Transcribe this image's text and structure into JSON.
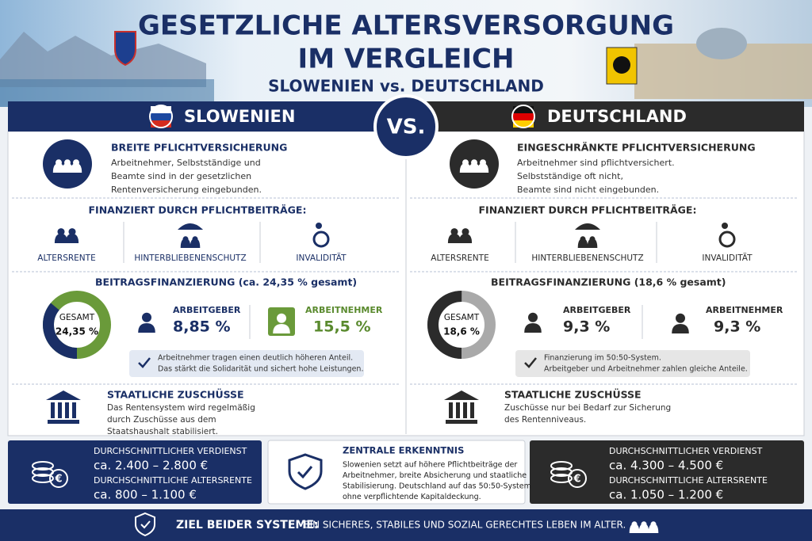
{
  "header": {
    "title_line1": "GESETZLICHE ALTERSVERSORGUNG",
    "title_line2": "IM VERGLEICH",
    "subtitle": "SLOWENIEN vs. DEUTSCHLAND"
  },
  "vs": "VS.",
  "columns": [
    {
      "country": "SLOWENIEN",
      "pflicht": {
        "title": "BREITE PFLICHTVERSICHERUNG",
        "lines": [
          "Arbeitnehmer, Selbstständige und",
          "Beamte sind in der gesetzlichen",
          "Rentenversicherung eingebunden."
        ]
      },
      "finanziert": {
        "title": "FINANZIERT DURCH PFLICHTBEITRÄGE:",
        "items": [
          "ALTERSRENTE",
          "HINTERBLIEBENENSCHUTZ",
          "INVALIDITÄT"
        ]
      },
      "beitrag": {
        "title": "BEITRAGSFINANZIERUNG (ca. 24,35 % gesamt)",
        "gesamt_label": "GESAMT",
        "gesamt_value": "24,35 %",
        "arbeitgeber_label": "ARBEITGEBER",
        "arbeitgeber_value": "8,85 %",
        "arbeitnehmer_label": "ARBEITNEHMER",
        "arbeitnehmer_value": "15,5 %",
        "note": [
          "Arbeitnehmer tragen einen deutlich höheren Anteil.",
          "Das stärkt die Solidarität und sichert hohe Leistungen."
        ]
      },
      "zuschuss": {
        "title": "STAATLICHE ZUSCHÜSSE",
        "lines": [
          "Das Rentensystem wird regelmäßig",
          "durch Zuschüsse aus dem",
          "Staatshaushalt stabilisiert."
        ]
      },
      "summary": {
        "verdienst_label": "DURCHSCHNITTLICHER VERDIENST",
        "verdienst_value": "ca. 2.400 – 2.800 €",
        "rente_label": "DURCHSCHNITTLICHE ALTERSRENTE",
        "rente_value": "ca. 800 – 1.100 €"
      }
    },
    {
      "country": "DEUTSCHLAND",
      "pflicht": {
        "title": "EINGESCHRÄNKTE PFLICHTVERSICHERUNG",
        "lines": [
          "Arbeitnehmer sind pflichtversichert.",
          "Selbstständige oft nicht,",
          "Beamte sind nicht eingebunden."
        ]
      },
      "finanziert": {
        "title": "FINANZIERT DURCH PFLICHTBEITRÄGE:",
        "items": [
          "ALTERSRENTE",
          "HINTERBLIEBENENSCHUTZ",
          "INVALIDITÄT"
        ]
      },
      "beitrag": {
        "title": "BEITRAGSFINANZIERUNG (18,6 % gesamt)",
        "gesamt_label": "GESAMT",
        "gesamt_value": "18,6 %",
        "arbeitgeber_label": "ARBEITGEBER",
        "arbeitgeber_value": "9,3 %",
        "arbeitnehmer_label": "ARBEITNEHMER",
        "arbeitnehmer_value": "9,3 %",
        "note": [
          "Finanzierung im 50:50-System.",
          "Arbeitgeber und Arbeitnehmer zahlen gleiche Anteile."
        ]
      },
      "zuschuss": {
        "title": "STAATLICHE ZUSCHÜSSE",
        "lines": [
          "Zuschüsse nur bei Bedarf zur Sicherung",
          "des Rentenniveaus."
        ]
      },
      "summary": {
        "verdienst_label": "DURCHSCHNITTLICHER VERDIENST",
        "verdienst_value": "ca. 4.300 – 4.500 €",
        "rente_label": "DURCHSCHNITTLICHE ALTERSRENTE",
        "rente_value": "ca. 1.050 – 1.200 €"
      }
    }
  ],
  "key_insight": {
    "title": "ZENTRALE ERKENNTNIS",
    "lines": [
      "Slowenien setzt auf höhere Pflichtbeiträge der",
      "Arbeitnehmer, breite Absicherung und staatliche",
      "Stabilisierung. Deutschland auf das 50:50-System",
      "ohne verpflichtende Kapitaldeckung."
    ]
  },
  "footer": {
    "label": "ZIEL BEIDER SYSTEME:",
    "text": "EIN SICHERES, STABILES UND SOZIAL GERECHTES LEBEN IM ALTER."
  }
}
